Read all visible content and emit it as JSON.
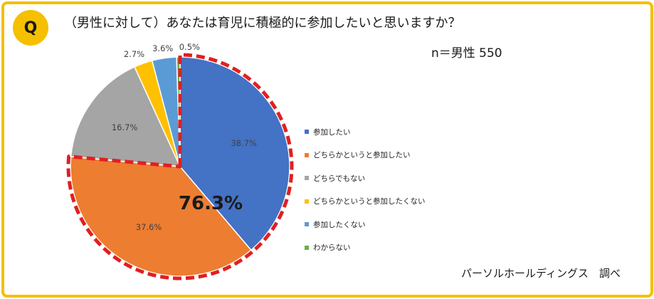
{
  "question": {
    "badge": "Q",
    "text": "（男性に対して）あなたは育児に積極的に参加したいと思いますか？"
  },
  "sample_label": "n＝男性 550",
  "source": "パーソルホールディングス　調べ",
  "highlight": {
    "label": "76.3%",
    "color": "#e02020"
  },
  "chart_data": {
    "type": "pie",
    "title": "",
    "start_angle_deg": 0,
    "direction": "clockwise",
    "slices": [
      {
        "label": "参加したい",
        "value": 38.7,
        "value_label": "38.7%",
        "color": "#4472c4"
      },
      {
        "label": "どちらかというと参加したい",
        "value": 37.6,
        "value_label": "37.6%",
        "color": "#ed7d31"
      },
      {
        "label": "どちらでもない",
        "value": 16.7,
        "value_label": "16.7%",
        "color": "#a5a5a5"
      },
      {
        "label": "どちらかというと参加したくない",
        "value": 2.7,
        "value_label": "2.7%",
        "color": "#ffc000"
      },
      {
        "label": "参加したくない",
        "value": 3.6,
        "value_label": "3.6%",
        "color": "#5b9bd5"
      },
      {
        "label": "わからない",
        "value": 0.5,
        "value_label": "0.5%",
        "color": "#70ad47"
      }
    ],
    "highlighted_slices": [
      "参加したい",
      "どちらかというと参加したい"
    ],
    "legend_position": "right"
  }
}
